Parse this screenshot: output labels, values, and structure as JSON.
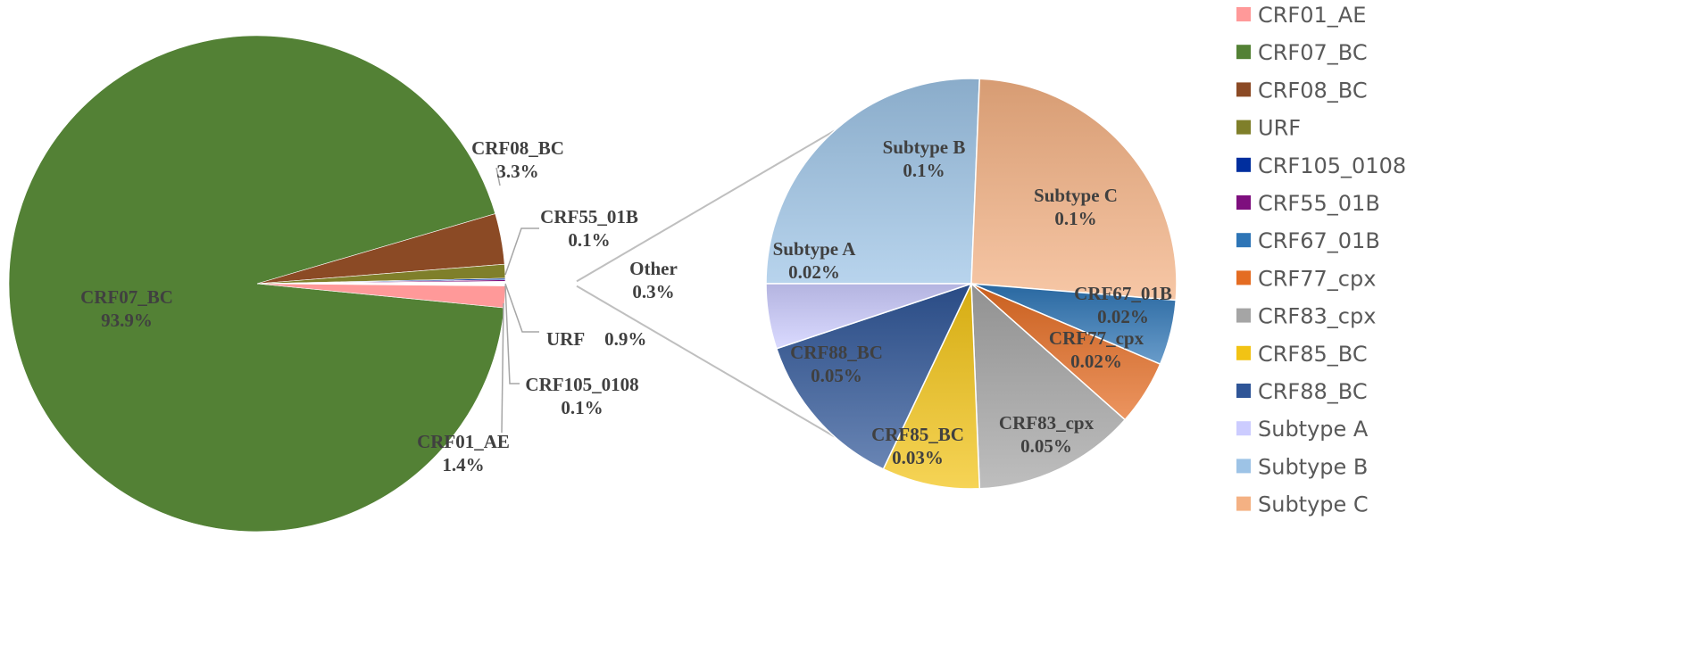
{
  "chart_data": [
    {
      "type": "pie",
      "slices": [
        {
          "name": "CRF07_BC",
          "value": 93.9,
          "label": "93.9%",
          "color": "#538135"
        },
        {
          "name": "CRF08_BC",
          "value": 3.3,
          "label": "3.3%",
          "color": "#8B4A25"
        },
        {
          "name": "URF",
          "value": 0.9,
          "label": "0.9%",
          "color": "#7F7F2A"
        },
        {
          "name": "CRF105_0108",
          "value": 0.1,
          "label": "0.1%",
          "color": "#002E9E"
        },
        {
          "name": "CRF55_01B",
          "value": 0.1,
          "label": "0.1%",
          "color": "#7E0F7E"
        },
        {
          "name": "Other",
          "value": 0.3,
          "label": "0.3%",
          "color": "#FFFFFF"
        },
        {
          "name": "CRF01_AE",
          "value": 1.4,
          "label": "1.4%",
          "color": "#FF9999"
        }
      ]
    },
    {
      "type": "pie",
      "slices": [
        {
          "name": "Subtype B",
          "value": 0.1,
          "label": "0.1%",
          "color": "#9DC3E6"
        },
        {
          "name": "Subtype C",
          "value": 0.1,
          "label": "0.1%",
          "color": "#F4B183"
        },
        {
          "name": "CRF67_01B",
          "value": 0.02,
          "label": "0.02%",
          "color": "#2E75B6"
        },
        {
          "name": "CRF77_cpx",
          "value": 0.02,
          "label": "0.02%",
          "color": "#E46C22"
        },
        {
          "name": "CRF83_cpx",
          "value": 0.05,
          "label": "0.05%",
          "color": "#A5A5A5"
        },
        {
          "name": "CRF85_BC",
          "value": 0.03,
          "label": "0.03%",
          "color": "#F2C314"
        },
        {
          "name": "CRF88_BC",
          "value": 0.05,
          "label": "0.05%",
          "color": "#2F5597"
        },
        {
          "name": "Subtype A",
          "value": 0.02,
          "label": "0.02%",
          "color": "#CCCCFF"
        }
      ]
    }
  ],
  "legend": [
    {
      "name": "CRF01_AE",
      "color": "#FF9999"
    },
    {
      "name": "CRF07_BC",
      "color": "#538135"
    },
    {
      "name": "CRF08_BC",
      "color": "#8B4A25"
    },
    {
      "name": "URF",
      "color": "#7F7F2A"
    },
    {
      "name": "CRF105_0108",
      "color": "#002E9E"
    },
    {
      "name": "CRF55_01B",
      "color": "#7E0F7E"
    },
    {
      "name": "CRF67_01B",
      "color": "#2E75B6"
    },
    {
      "name": "CRF77_cpx",
      "color": "#E46C22"
    },
    {
      "name": "CRF83_cpx",
      "color": "#A5A5A5"
    },
    {
      "name": "CRF85_BC",
      "color": "#F2C314"
    },
    {
      "name": "CRF88_BC",
      "color": "#2F5597"
    },
    {
      "name": "Subtype A",
      "color": "#CCCCFF"
    },
    {
      "name": "Subtype B",
      "color": "#9DC3E6"
    },
    {
      "name": "Subtype C",
      "color": "#F4B183"
    }
  ]
}
